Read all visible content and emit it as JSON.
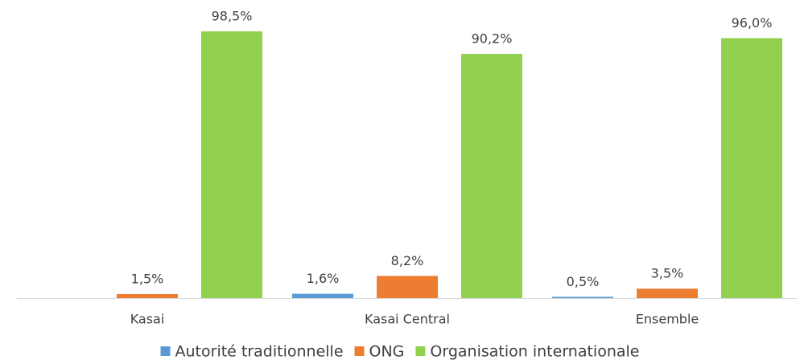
{
  "chart_data": {
    "type": "bar",
    "categories": [
      "Kasai",
      "Kasai Central",
      "Ensemble"
    ],
    "series": [
      {
        "name": "Autorité traditionnelle",
        "color": "#5b9bd5",
        "values": [
          null,
          1.6,
          0.5
        ],
        "value_labels": [
          null,
          "1,6%",
          "0,5%"
        ]
      },
      {
        "name": "ONG",
        "color": "#ed7d31",
        "values": [
          1.5,
          8.2,
          3.5
        ],
        "value_labels": [
          "1,5%",
          "8,2%",
          "3,5%"
        ]
      },
      {
        "name": "Organisation internationale",
        "color": "#92d050",
        "values": [
          98.5,
          90.2,
          96.0
        ],
        "value_labels": [
          "98,5%",
          "90,2%",
          "96,0%"
        ]
      }
    ],
    "ylim": [
      0,
      100
    ],
    "legend": "bottom"
  }
}
